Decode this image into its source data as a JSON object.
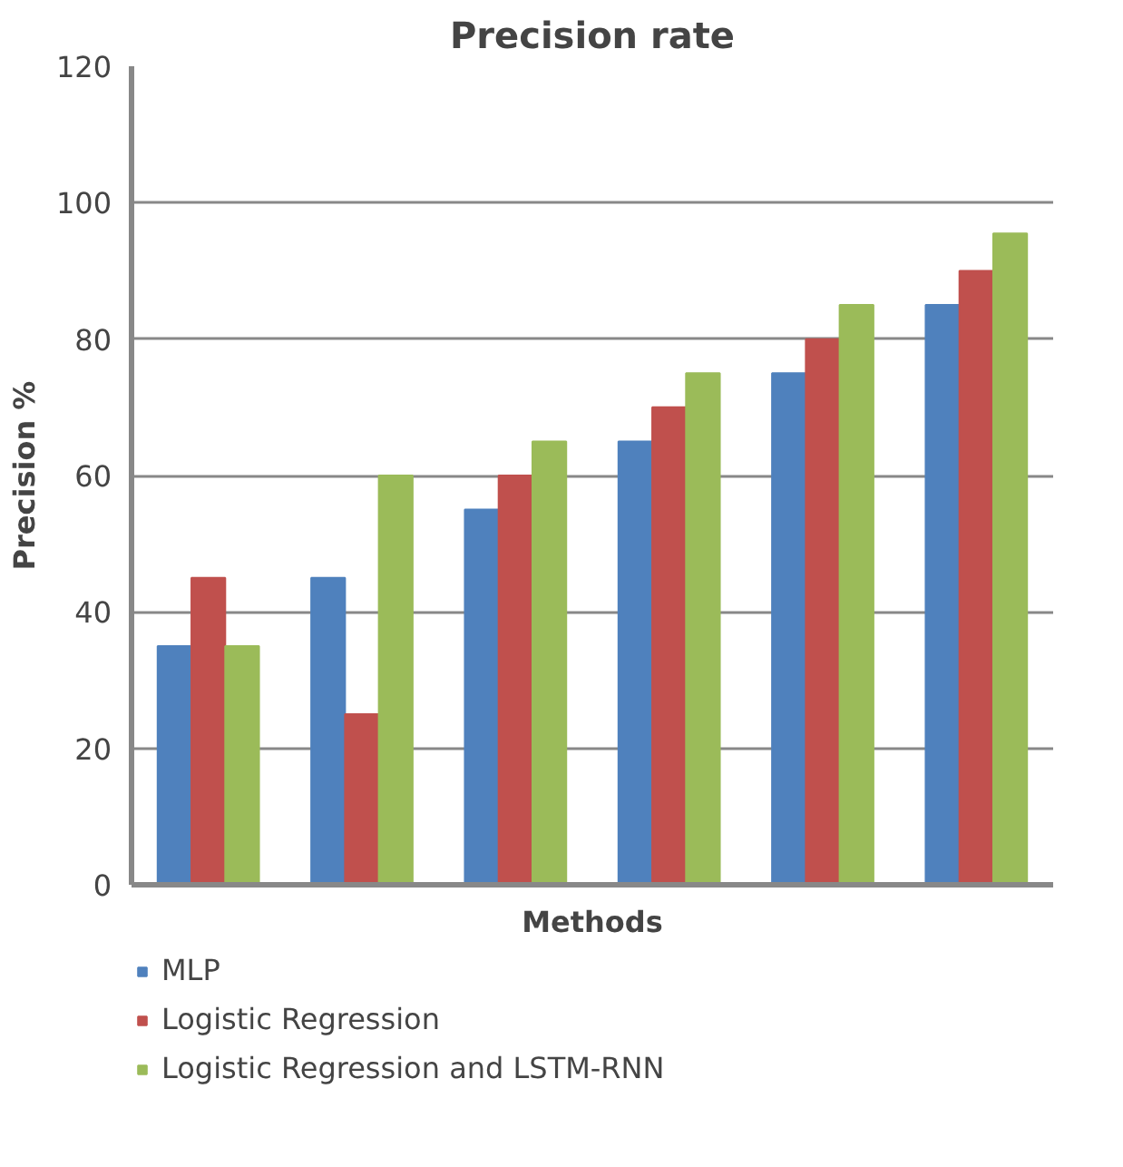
{
  "chart_data": {
    "type": "bar",
    "title": "Precision rate",
    "xlabel": "Methods",
    "ylabel": "Precision %",
    "categories": [
      null,
      null,
      null,
      null,
      null,
      null
    ],
    "series": [
      {
        "name": "MLP",
        "color": "#4f81bd",
        "values": [
          35,
          45,
          55,
          65,
          75,
          85
        ]
      },
      {
        "name": "Logistic Regression",
        "color": "#c0504d",
        "values": [
          45,
          25,
          60,
          70,
          80,
          90
        ]
      },
      {
        "name": "Logistic Regression and LSTM-RNN",
        "color": "#9bbb59",
        "values": [
          35,
          60,
          65,
          75,
          85,
          95.5
        ]
      }
    ],
    "ylim": [
      0,
      120
    ],
    "yticks": [
      0,
      20,
      40,
      60,
      80,
      100,
      120
    ],
    "grid": "y",
    "legend": "bottom"
  }
}
